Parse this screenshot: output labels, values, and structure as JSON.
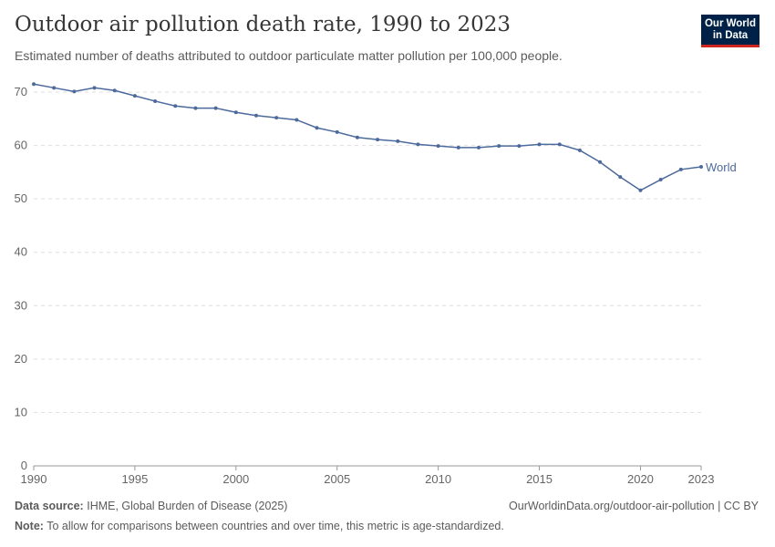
{
  "header": {
    "title": "Outdoor air pollution death rate, 1990 to 2023",
    "subtitle": "Estimated number of deaths attributed to outdoor particulate matter pollution per 100,000 people.",
    "logo_line1": "Our World",
    "logo_line2": "in Data"
  },
  "footer": {
    "source_label": "Data source:",
    "source": "IHME, Global Burden of Disease (2025)",
    "url": "OurWorldinData.org/outdoor-air-pollution | CC BY",
    "note_label": "Note:",
    "note": "To allow for comparisons between countries and over time, this metric is age-standardized."
  },
  "chart_data": {
    "type": "line",
    "title": "Outdoor air pollution death rate, 1990 to 2023",
    "xlabel": "",
    "ylabel": "",
    "xlim": [
      1990,
      2023
    ],
    "ylim": [
      0,
      70
    ],
    "xticks": [
      "1990",
      "1995",
      "2000",
      "2005",
      "2010",
      "2015",
      "2020",
      "2023"
    ],
    "yticks": [
      "0",
      "10",
      "20",
      "30",
      "40",
      "50",
      "60",
      "70"
    ],
    "grid": "horizontal dashed",
    "color": "#4c6a9c",
    "x": [
      1990,
      1991,
      1992,
      1993,
      1994,
      1995,
      1996,
      1997,
      1998,
      1999,
      2000,
      2001,
      2002,
      2003,
      2004,
      2005,
      2006,
      2007,
      2008,
      2009,
      2010,
      2011,
      2012,
      2013,
      2014,
      2015,
      2016,
      2017,
      2018,
      2019,
      2020,
      2021,
      2022,
      2023
    ],
    "series": [
      {
        "name": "World",
        "values": [
          71.5,
          70.8,
          70.1,
          70.8,
          70.3,
          69.3,
          68.3,
          67.4,
          67.0,
          67.0,
          66.2,
          65.6,
          65.2,
          64.8,
          63.3,
          62.5,
          61.5,
          61.1,
          60.8,
          60.2,
          59.9,
          59.6,
          59.6,
          59.9,
          59.9,
          60.2,
          60.2,
          59.1,
          56.9,
          54.1,
          51.6,
          53.6,
          55.5,
          56.0
        ]
      }
    ]
  }
}
